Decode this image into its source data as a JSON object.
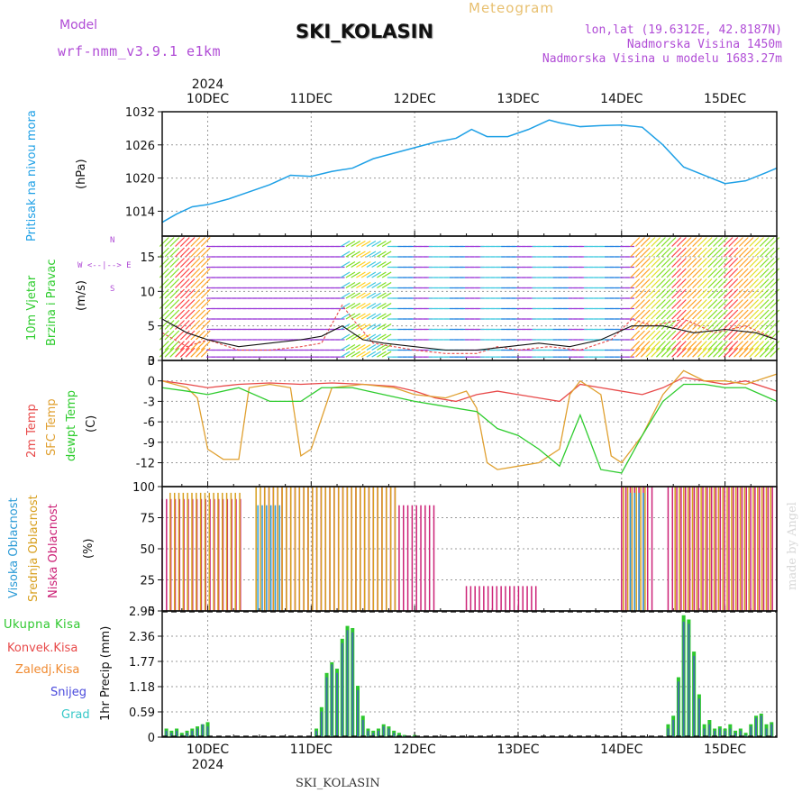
{
  "header": {
    "model_label": "Model",
    "model_value": "wrf-nmm_v3.9.1 e1km",
    "meteogram_label": "Meteogram",
    "station_title": "SKI_KOLASIN",
    "lonlat": "lon,lat (19.6312E, 42.8187N)",
    "elevation": "Nadmorska Visina 1450m",
    "model_elevation": "Nadmorska Visina u modelu 1683.27m"
  },
  "footer": {
    "station": "SKI_KOLASIN",
    "watermark": "made by Angel"
  },
  "colors": {
    "pressure": "#1ea0e6",
    "temp2m": "#e84a4a",
    "sfc": "#e0a030",
    "dewpt": "#2ecc2e",
    "cloud_high": "#2a9ad6",
    "cloud_mid": "#d8a020",
    "cloud_low": "#cc2277",
    "precip_total": "#2ec82e",
    "precip_conv": "#e84a4a",
    "precip_frozen": "#f08a30",
    "precip_snow": "#4a4adc",
    "precip_graupel": "#36c8c8",
    "wind_legend": "#b04cd6"
  },
  "chart_data": [
    {
      "id": "pressure",
      "type": "line",
      "ylabels": [
        "Pritisak na nivou mora",
        "(hPa)"
      ],
      "yticks": [
        1014,
        1020,
        1026,
        1032
      ],
      "ylim": [
        1009.5,
        1032
      ],
      "x_start_day": 9.56,
      "x_end_day": 15.5,
      "top_day_labels": [
        "10DEC",
        "11DEC",
        "12DEC",
        "13DEC",
        "14DEC",
        "15DEC"
      ],
      "top_year": "2024",
      "series": [
        {
          "x": [
            9.56,
            9.7,
            9.85,
            10.0,
            10.2,
            10.4,
            10.6,
            10.8,
            11.0,
            11.2,
            11.4,
            11.6,
            11.8,
            12.0,
            12.2,
            12.4,
            12.55,
            12.7,
            12.9,
            13.1,
            13.3,
            13.4,
            13.6,
            13.8,
            14.0,
            14.2,
            14.4,
            14.6,
            14.8,
            15.0,
            15.2,
            15.4,
            15.5
          ],
          "y": [
            1012,
            1013.5,
            1014.8,
            1015.2,
            1016.2,
            1017.5,
            1018.8,
            1020.5,
            1020.3,
            1021.2,
            1021.8,
            1023.5,
            1024.5,
            1025.5,
            1026.5,
            1027.2,
            1028.8,
            1027.5,
            1027.5,
            1028.8,
            1030.5,
            1030.0,
            1029.3,
            1029.5,
            1029.6,
            1029.2,
            1026.0,
            1022.0,
            1020.5,
            1019.0,
            1019.5,
            1021.0,
            1021.8
          ]
        }
      ]
    },
    {
      "id": "wind",
      "type": "line",
      "ylabels": [
        "10m Vjetar",
        "Brzina i Pravac",
        "(m/s)"
      ],
      "direction_legend": [
        "N",
        "W <--|--> E",
        "S"
      ],
      "yticks": [
        0,
        5,
        10,
        15
      ],
      "ylim": [
        0,
        18
      ],
      "series": [
        {
          "name": "",
          "x": [
            9.56,
            9.8,
            10.0,
            10.3,
            10.6,
            10.9,
            11.1,
            11.3,
            11.4,
            11.6,
            11.8,
            12.0,
            12.3,
            12.6,
            12.8,
            13.0,
            13.3,
            13.6,
            13.9,
            14.1,
            14.3,
            14.6,
            14.9,
            15.2,
            15.5
          ],
          "y": [
            4,
            2,
            3,
            1.5,
            1.5,
            2,
            2.5,
            8,
            6,
            2.5,
            2,
            1.5,
            1,
            1,
            2,
            1.5,
            2,
            1.5,
            3,
            6,
            5,
            6,
            4,
            5,
            3
          ]
        },
        {
          "name": "",
          "x": [
            9.56,
            9.8,
            10.0,
            10.3,
            10.6,
            10.9,
            11.1,
            11.3,
            11.5,
            11.7,
            12.0,
            12.3,
            12.6,
            12.9,
            13.2,
            13.5,
            13.8,
            14.1,
            14.4,
            14.7,
            15.0,
            15.3,
            15.5
          ],
          "y": [
            6,
            4,
            3,
            2,
            2.5,
            3,
            3.5,
            5,
            3,
            2.5,
            2,
            1.5,
            1.5,
            2,
            2.5,
            2,
            3,
            5,
            5,
            4,
            4.5,
            4,
            3
          ]
        }
      ]
    },
    {
      "id": "temperature",
      "type": "line",
      "ylabels": [
        "2m Temp",
        "SFC Temp",
        "dewpt Temp",
        "(C)"
      ],
      "yticks": [
        3,
        0,
        -3,
        -6,
        -9,
        -12
      ],
      "ylim": [
        -15.5,
        3
      ],
      "series": [
        {
          "name": "2m Temp",
          "x": [
            9.56,
            9.8,
            10.0,
            10.3,
            10.6,
            10.9,
            11.2,
            11.5,
            11.8,
            12.0,
            12.2,
            12.4,
            12.6,
            12.8,
            13.0,
            13.2,
            13.4,
            13.6,
            13.8,
            14.0,
            14.2,
            14.4,
            14.6,
            14.8,
            15.0,
            15.2,
            15.5
          ],
          "y": [
            0,
            -0.5,
            -1,
            -0.5,
            -0.3,
            -0.5,
            -0.3,
            -0.5,
            -0.8,
            -1.5,
            -2.5,
            -3,
            -2,
            -1.5,
            -2,
            -2.5,
            -3,
            -0.5,
            -1,
            -1.5,
            -2,
            -1,
            0.5,
            0,
            -0.5,
            0,
            -1.5
          ]
        },
        {
          "name": "SFC Temp",
          "x": [
            9.56,
            9.8,
            9.9,
            10.0,
            10.15,
            10.3,
            10.4,
            10.6,
            10.8,
            10.9,
            11.0,
            11.2,
            11.5,
            11.8,
            12.0,
            12.3,
            12.5,
            12.6,
            12.7,
            12.8,
            13.0,
            13.2,
            13.4,
            13.5,
            13.6,
            13.8,
            13.9,
            14.0,
            14.2,
            14.4,
            14.6,
            14.8,
            15.0,
            15.2,
            15.4,
            15.5
          ],
          "y": [
            0,
            -1,
            -2.5,
            -10,
            -11.5,
            -11.5,
            -1,
            -0.5,
            -1,
            -11,
            -10,
            -1,
            -0.5,
            -1,
            -2,
            -2.5,
            -1.5,
            -4,
            -12,
            -13,
            -12.5,
            -12,
            -10,
            -2,
            0,
            -2,
            -11,
            -12,
            -8,
            -2,
            1.5,
            0,
            0,
            -0.5,
            0.5,
            1
          ]
        },
        {
          "name": "dewpt Temp",
          "x": [
            9.56,
            9.8,
            10.0,
            10.3,
            10.6,
            10.9,
            11.1,
            11.4,
            11.7,
            12.0,
            12.2,
            12.4,
            12.6,
            12.8,
            13.0,
            13.2,
            13.4,
            13.6,
            13.8,
            14.0,
            14.2,
            14.4,
            14.6,
            14.8,
            15.0,
            15.2,
            15.5
          ],
          "y": [
            -1,
            -1.5,
            -2,
            -1,
            -3,
            -3,
            -1,
            -1,
            -2,
            -3,
            -3.5,
            -4,
            -4.5,
            -7,
            -8,
            -10,
            -12.5,
            -5,
            -13,
            -13.5,
            -8,
            -3,
            -0.5,
            -0.5,
            -1,
            -1,
            -3
          ]
        }
      ]
    },
    {
      "id": "cloud",
      "type": "bar",
      "ylabels": [
        "Visoka Oblacnost",
        "Srednja Oblacnost",
        "Niska Oblacnost",
        "(%)"
      ],
      "yticks": [
        0,
        25,
        50,
        75,
        100
      ],
      "ylim": [
        0,
        100
      ],
      "series": [
        {
          "name": "Niska Oblacnost",
          "ranges": [
            [
              9.56,
              10.35,
              90
            ],
            [
              10.55,
              11.85,
              100
            ],
            [
              11.85,
              12.2,
              85
            ],
            [
              12.5,
              13.2,
              20
            ],
            [
              14.0,
              14.3,
              100
            ],
            [
              14.45,
              15.5,
              100
            ]
          ]
        },
        {
          "name": "Srednja Oblacnost",
          "ranges": [
            [
              9.62,
              10.3,
              95
            ],
            [
              10.45,
              11.8,
              100
            ],
            [
              14.0,
              14.25,
              100
            ],
            [
              14.5,
              15.45,
              100
            ]
          ]
        },
        {
          "name": "Visoka Oblacnost",
          "ranges": [
            [
              10.45,
              10.7,
              85
            ],
            [
              14.05,
              14.2,
              95
            ]
          ]
        }
      ]
    },
    {
      "id": "precip",
      "type": "bar",
      "ylabels": [
        "Ukupna Kisa",
        "Konvek.Kisa",
        "Zaledj.Kisa",
        "Snijeg",
        "Grad",
        "1hr Precip (mm)"
      ],
      "yticks": [
        0,
        0.59,
        1.18,
        1.77,
        2.36,
        2.95
      ],
      "ylim": [
        0,
        2.95
      ],
      "bottom_day_labels": [
        "10DEC",
        "11DEC",
        "12DEC",
        "13DEC",
        "14DEC",
        "15DEC"
      ],
      "bottom_year": "2024",
      "x": [
        9.6,
        9.65,
        9.7,
        9.75,
        9.8,
        9.85,
        9.9,
        9.95,
        10.0,
        11.05,
        11.1,
        11.15,
        11.2,
        11.25,
        11.3,
        11.35,
        11.4,
        11.45,
        11.5,
        11.55,
        11.6,
        11.65,
        11.7,
        11.75,
        11.8,
        11.85,
        11.9,
        12.0,
        14.45,
        14.5,
        14.55,
        14.6,
        14.65,
        14.7,
        14.75,
        14.8,
        14.85,
        14.9,
        14.95,
        15.0,
        15.05,
        15.1,
        15.15,
        15.2,
        15.25,
        15.3,
        15.35,
        15.4,
        15.45
      ],
      "total": [
        0.2,
        0.15,
        0.2,
        0.1,
        0.15,
        0.2,
        0.25,
        0.3,
        0.35,
        0.2,
        0.7,
        1.5,
        1.75,
        1.6,
        2.3,
        2.6,
        2.55,
        1.2,
        0.5,
        0.2,
        0.15,
        0.2,
        0.3,
        0.25,
        0.15,
        0.1,
        0.05,
        0.05,
        0.3,
        0.5,
        1.4,
        2.85,
        2.75,
        2.0,
        1.0,
        0.3,
        0.4,
        0.2,
        0.25,
        0.2,
        0.3,
        0.15,
        0.2,
        0.1,
        0.3,
        0.5,
        0.55,
        0.3,
        0.35
      ],
      "snow": [
        0.15,
        0.1,
        0.15,
        0.05,
        0.1,
        0.15,
        0.2,
        0.3,
        0.25,
        0.15,
        0.6,
        1.4,
        1.7,
        1.5,
        2.2,
        2.5,
        2.45,
        1.1,
        0.4,
        0.15,
        0.1,
        0.15,
        0.25,
        0.2,
        0.1,
        0.05,
        0.03,
        0.03,
        0.2,
        0.4,
        1.3,
        2.7,
        2.65,
        1.9,
        0.9,
        0.2,
        0.3,
        0.15,
        0.2,
        0.15,
        0.2,
        0.1,
        0.15,
        0.05,
        0.25,
        0.45,
        0.5,
        0.2,
        0.3
      ]
    }
  ],
  "legends": {
    "wind": {
      "name_a": "10m Vjetar",
      "name_b": "Brzina i Pravac",
      "unit": "(m/s)"
    },
    "temp": {
      "t2m": "2m Temp",
      "sfc": "SFC Temp",
      "dew": "dewpt Temp",
      "unit": "(C)"
    },
    "cloud": {
      "high": "Visoka Oblacnost",
      "mid": "Srednja Oblacnost",
      "low": "Niska Oblacnost",
      "unit": "(%)"
    },
    "precip": {
      "total": "Ukupna Kisa",
      "conv": "Konvek.Kisa",
      "frozen": "Zaledj.Kisa",
      "snow": "Snijeg",
      "grad": "Grad",
      "unit": "1hr Precip (mm)"
    },
    "pressure": {
      "name": "Pritisak na nivou mora",
      "unit": "(hPa)"
    }
  }
}
